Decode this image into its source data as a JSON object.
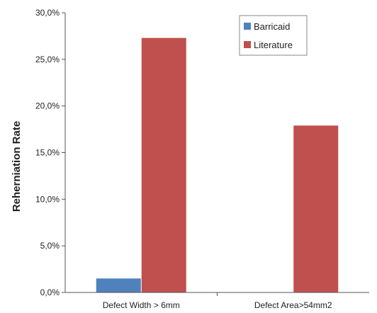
{
  "chart_data": {
    "type": "bar",
    "categories": [
      "Defect Width > 6mm",
      "Defect Area>54mm2"
    ],
    "series": [
      {
        "name": "Barricaid",
        "color": "#4f81bd",
        "values": [
          1.5,
          0
        ]
      },
      {
        "name": "Literature",
        "color": "#c0504d",
        "values": [
          27.3,
          17.9
        ]
      }
    ],
    "title": "",
    "xlabel": "",
    "ylabel": "Reherniation Rate",
    "ylim": [
      0,
      30
    ],
    "yticks": [
      0,
      5,
      10,
      15,
      20,
      25,
      30
    ],
    "ytick_labels": [
      "0,0%",
      "5,0%",
      "10,0%",
      "15,0%",
      "20,0%",
      "25,0%",
      "30,0%"
    ],
    "grid": false,
    "legend_position": "top-right"
  }
}
